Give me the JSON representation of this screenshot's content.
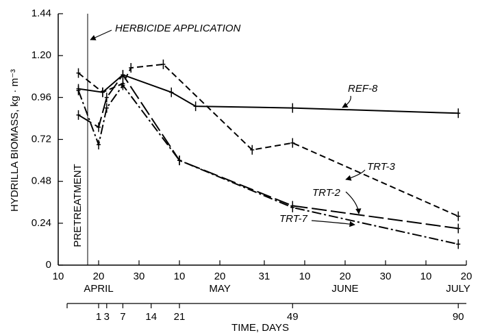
{
  "chart_data": {
    "type": "line",
    "ylabel": "HYDRILLA BIOMASS, kg · m⁻³",
    "xlabel": "TIME, DAYS",
    "annotations": [
      "HERBICIDE APPLICATION",
      "PRETREATMENT"
    ],
    "months": [
      "APRIL",
      "MAY",
      "JUNE",
      "JULY"
    ],
    "xlim": [
      -9,
      92
    ],
    "xticks": [
      {
        "value": -9,
        "label": "10"
      },
      {
        "value": 1,
        "label": "20"
      },
      {
        "value": 11,
        "label": "30"
      },
      {
        "value": 21,
        "label": "10"
      },
      {
        "value": 31,
        "label": "20"
      },
      {
        "value": 42,
        "label": "31"
      },
      {
        "value": 52,
        "label": "10"
      },
      {
        "value": 62,
        "label": "20"
      },
      {
        "value": 72,
        "label": "30"
      },
      {
        "value": 82,
        "label": "10"
      },
      {
        "value": 92,
        "label": "20"
      }
    ],
    "x2ticks": [
      1,
      3,
      7,
      14,
      21,
      49,
      90
    ],
    "ylim": [
      0,
      1.44
    ],
    "yticks": [
      0,
      0.24,
      0.48,
      0.72,
      0.96,
      {
        "value": 1.2,
        "label": "1.20"
      },
      1.44
    ],
    "series": [
      {
        "name": "REF-8",
        "color": "#000000",
        "dash": "solid",
        "x": [
          -4,
          2,
          7,
          19,
          25,
          49,
          90
        ],
        "values": [
          1.01,
          0.99,
          1.09,
          0.99,
          0.91,
          0.9,
          0.87
        ]
      },
      {
        "name": "TRT-3",
        "color": "#000000",
        "dash": "short",
        "x": [
          -4,
          2,
          7,
          9,
          17,
          39,
          49,
          90
        ],
        "values": [
          1.1,
          0.99,
          1.04,
          1.13,
          1.15,
          0.66,
          0.7,
          0.28
        ]
      },
      {
        "name": "TRT-2",
        "color": "#000000",
        "dash": "long",
        "x": [
          -4,
          1,
          3,
          7,
          21,
          49,
          90
        ],
        "values": [
          0.86,
          0.79,
          0.96,
          1.09,
          0.6,
          0.34,
          0.21
        ]
      },
      {
        "name": "TRT-7",
        "color": "#000000",
        "dash": "dashdot",
        "x": [
          -4,
          1,
          3,
          7,
          21,
          49,
          90
        ],
        "values": [
          1.0,
          0.69,
          0.9,
          1.03,
          0.6,
          0.33,
          0.12
        ]
      }
    ]
  }
}
